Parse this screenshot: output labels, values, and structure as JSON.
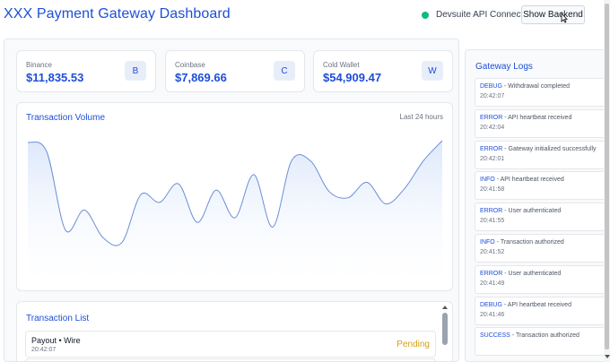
{
  "header": {
    "title": "XXX Payment Gateway Dashboard",
    "status_text": "Devsuite API Connected",
    "show_backend_label": "Show Backend",
    "status_color": "#10b981"
  },
  "stats": [
    {
      "label": "Binance",
      "value": "$11,835.53",
      "badge": "B"
    },
    {
      "label": "Coinbase",
      "value": "$7,869.66",
      "badge": "C"
    },
    {
      "label": "Cold Wallet",
      "value": "$54,909.47",
      "badge": "W"
    }
  ],
  "chart": {
    "title": "Transaction Volume",
    "range_label": "Last 24 hours"
  },
  "chart_data": {
    "type": "area",
    "title": "Transaction Volume",
    "xlabel": "",
    "ylabel": "",
    "ylim": [
      0,
      100
    ],
    "grid": false,
    "values": [
      92,
      86,
      35,
      48,
      30,
      27,
      58,
      53,
      65,
      40,
      61,
      43,
      71,
      37,
      80,
      80,
      60,
      56,
      66,
      52,
      62,
      80,
      93
    ]
  },
  "transactions": {
    "title": "Transaction List",
    "rows": [
      {
        "name": "Payout • Wire",
        "time": "20:42:07",
        "status": "Pending"
      }
    ]
  },
  "logs": {
    "title": "Gateway Logs",
    "entries": [
      {
        "level": "DEBUG",
        "message": "- Withdrawal completed",
        "time": "20:42:07"
      },
      {
        "level": "ERROR",
        "message": "- API heartbeat received",
        "time": "20:42:04"
      },
      {
        "level": "ERROR",
        "message": "- Gateway initialized successfully",
        "time": "20:42:01"
      },
      {
        "level": "INFO",
        "message": "- API heartbeat received",
        "time": "20:41:58"
      },
      {
        "level": "ERROR",
        "message": "- User authenticated",
        "time": "20:41:55"
      },
      {
        "level": "INFO",
        "message": "- Transaction authorized",
        "time": "20:41:52"
      },
      {
        "level": "ERROR",
        "message": "- User authenticated",
        "time": "20:41:49"
      },
      {
        "level": "DEBUG",
        "message": "- API heartbeat received",
        "time": "20:41:46"
      },
      {
        "level": "SUCCESS",
        "message": "- Transaction authorized",
        "time": ""
      }
    ]
  },
  "colors": {
    "accent": "#1d4ed8",
    "pending": "#d4a017",
    "chart_line": "#6b8fd6",
    "chart_fill": "#dbe7fb"
  }
}
